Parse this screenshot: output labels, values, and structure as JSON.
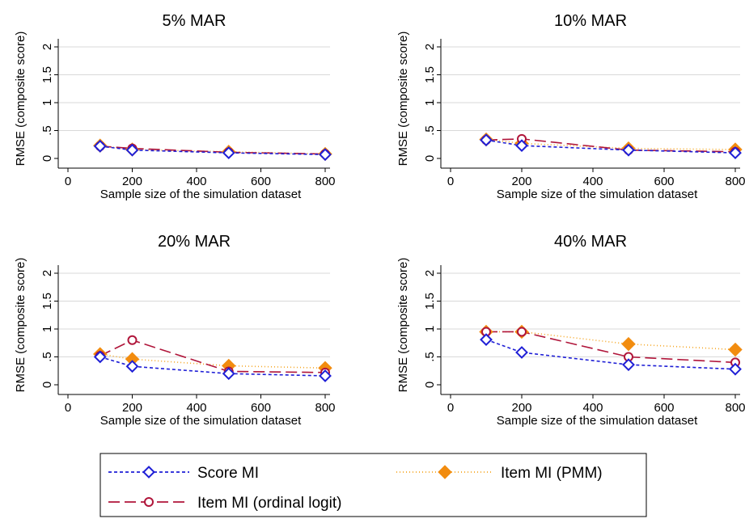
{
  "chart_data": {
    "type": "line",
    "shared": {
      "xlabel": "Sample size of the simulation dataset",
      "ylabel": "RMSE (composite score)",
      "xlim": [
        0,
        800
      ],
      "ylim": [
        0,
        2
      ],
      "xticks": [
        0,
        200,
        400,
        600,
        800
      ],
      "xtick_labels": [
        "0",
        "200",
        "400",
        "600",
        "800"
      ],
      "yticks": [
        0,
        0.5,
        1,
        1.5,
        2
      ],
      "ytick_labels": [
        "0",
        ".5",
        "1",
        "1.5",
        "2"
      ],
      "grid": "horizontal",
      "x": [
        100,
        200,
        500,
        800
      ]
    },
    "series_styles": [
      {
        "name": "Score MI",
        "color": "#1f1fd6",
        "dash": "4,3",
        "marker": "diamond-hollow"
      },
      {
        "name": "Item MI (ordinal logit)",
        "color": "#b0153a",
        "dash": "14,6",
        "marker": "circle-hollow"
      },
      {
        "name": "Item MI (PMM)",
        "color": "#f5a623",
        "dash": "1,3",
        "marker": "diamond-filled",
        "marker_color": "#f28c0f"
      }
    ],
    "panels": [
      {
        "title": "5% MAR",
        "series": [
          {
            "name": "Score MI",
            "values": [
              0.22,
              0.15,
              0.1,
              0.07
            ]
          },
          {
            "name": "Item MI (ordinal logit)",
            "values": [
              0.22,
              0.18,
              0.11,
              0.08
            ]
          },
          {
            "name": "Item MI (PMM)",
            "values": [
              0.23,
              0.16,
              0.12,
              0.08
            ]
          }
        ]
      },
      {
        "title": "10% MAR",
        "series": [
          {
            "name": "Score MI",
            "values": [
              0.33,
              0.23,
              0.15,
              0.1
            ]
          },
          {
            "name": "Item MI (ordinal logit)",
            "values": [
              0.33,
              0.35,
              0.15,
              0.12
            ]
          },
          {
            "name": "Item MI (PMM)",
            "values": [
              0.34,
              0.27,
              0.18,
              0.16
            ]
          }
        ]
      },
      {
        "title": "20% MAR",
        "series": [
          {
            "name": "Score MI",
            "values": [
              0.5,
              0.33,
              0.2,
              0.16
            ]
          },
          {
            "name": "Item MI (ordinal logit)",
            "values": [
              0.52,
              0.8,
              0.24,
              0.22
            ]
          },
          {
            "name": "Item MI (PMM)",
            "values": [
              0.55,
              0.46,
              0.34,
              0.3
            ]
          }
        ]
      },
      {
        "title": "40% MAR",
        "series": [
          {
            "name": "Score MI",
            "values": [
              0.81,
              0.58,
              0.36,
              0.28
            ]
          },
          {
            "name": "Item MI (ordinal logit)",
            "values": [
              0.95,
              0.95,
              0.5,
              0.4
            ]
          },
          {
            "name": "Item MI (PMM)",
            "values": [
              0.95,
              0.95,
              0.73,
              0.63
            ]
          }
        ]
      }
    ],
    "legend": {
      "entries": [
        "Score MI",
        "Item MI (PMM)",
        "Item MI (ordinal logit)"
      ]
    }
  }
}
